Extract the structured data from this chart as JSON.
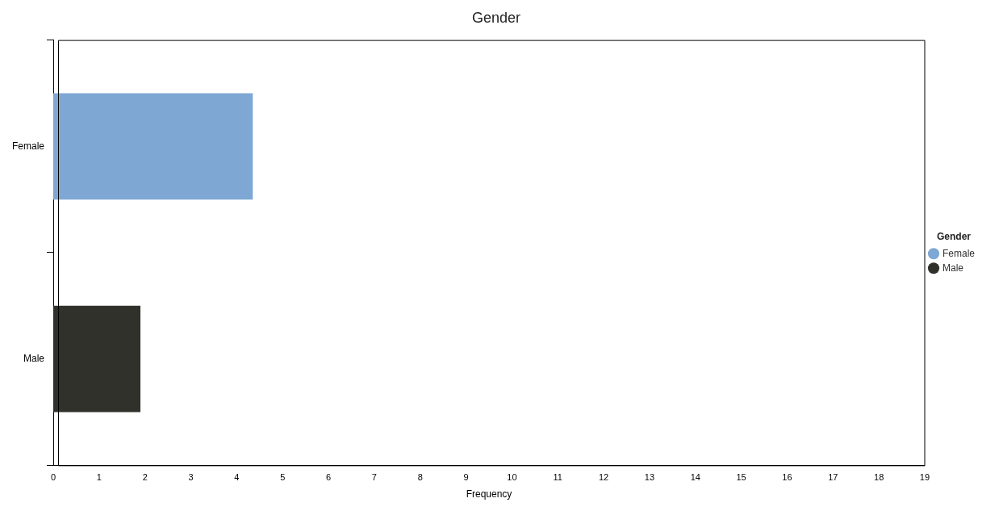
{
  "chart_data": {
    "type": "bar",
    "orientation": "horizontal",
    "title": "Gender",
    "xlabel": "Frequency",
    "legend_title": "Gender",
    "legend": "right",
    "categories": [
      "Female",
      "Male"
    ],
    "series": [
      {
        "name": "Female",
        "color": "#7ea7d3",
        "values": [
          4.35,
          null
        ]
      },
      {
        "name": "Male",
        "color": "#31312c",
        "values": [
          null,
          1.9
        ]
      }
    ],
    "xlim": [
      0,
      19
    ],
    "xticks": [
      0,
      1,
      2,
      3,
      4,
      5,
      6,
      7,
      8,
      9,
      10,
      11,
      12,
      13,
      14,
      15,
      16,
      17,
      18,
      19
    ],
    "grid": false
  }
}
